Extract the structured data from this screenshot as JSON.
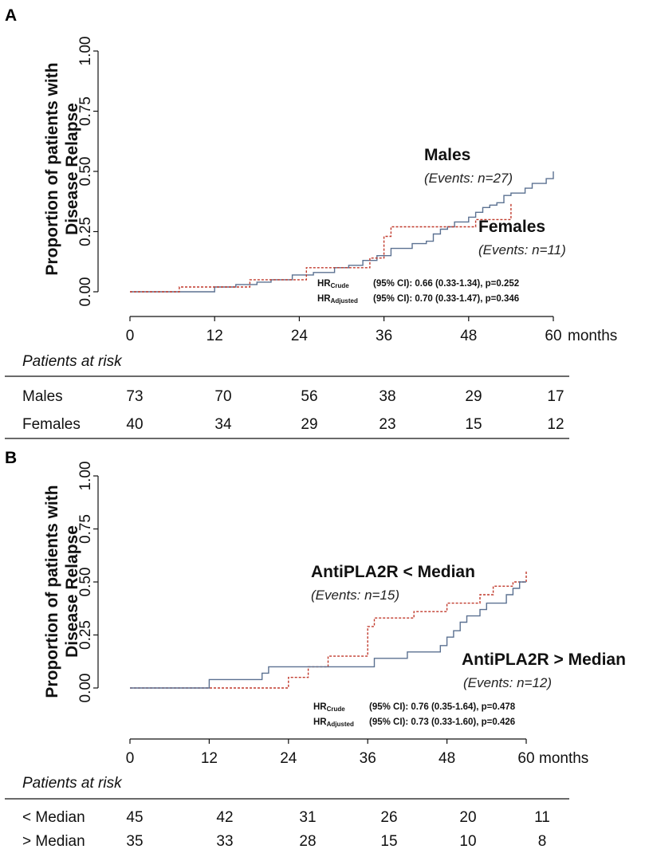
{
  "chart_data": [
    {
      "type": "line",
      "panel_label": "A",
      "ylabel_line1": "Proportion of patients with",
      "ylabel_line2": "Disease Relapse",
      "xlabel_suffix": "months",
      "xlim": [
        0,
        60
      ],
      "ylim": [
        0,
        1
      ],
      "x_ticks": [
        "0",
        "12",
        "24",
        "36",
        "48",
        "60"
      ],
      "y_ticks": [
        "0.00",
        "0.25",
        "0.50",
        "0.75",
        "1.00"
      ],
      "series": [
        {
          "name": "Males",
          "events_label": "(Events: n=27)",
          "color": "#5b7191",
          "dash": "solid",
          "x": [
            0,
            9,
            12,
            15,
            18,
            20,
            23,
            26,
            29,
            31,
            33,
            35,
            37,
            40,
            42,
            43,
            44,
            45,
            46,
            48,
            49,
            50,
            51,
            52,
            53,
            54,
            56,
            57,
            59,
            60
          ],
          "y": [
            0,
            0,
            0.02,
            0.03,
            0.04,
            0.05,
            0.07,
            0.08,
            0.1,
            0.11,
            0.13,
            0.15,
            0.18,
            0.2,
            0.21,
            0.24,
            0.26,
            0.27,
            0.29,
            0.31,
            0.33,
            0.35,
            0.36,
            0.37,
            0.4,
            0.41,
            0.43,
            0.45,
            0.47,
            0.5
          ]
        },
        {
          "name": "Females",
          "events_label": "(Events: n=11)",
          "color": "#c0392b",
          "dash": "dashed",
          "x": [
            0,
            7,
            12,
            16,
            17,
            22,
            25,
            31,
            34,
            36,
            37,
            39,
            40,
            47,
            49,
            50,
            54
          ],
          "y": [
            0,
            0.02,
            0.02,
            0.02,
            0.05,
            0.05,
            0.1,
            0.1,
            0.14,
            0.23,
            0.27,
            0.27,
            0.27,
            0.27,
            0.3,
            0.3,
            0.37
          ]
        }
      ],
      "hr_crude_label": "HR",
      "hr_crude_sub": "Crude",
      "hr_crude_text": "(95% CI):  0.66 (0.33-1.34), p=0.252",
      "hr_adjusted_label": "HR",
      "hr_adjusted_sub": "Adjusted",
      "hr_adjusted_text": "(95% CI):  0.70 (0.33-1.47), p=0.346",
      "risk_title": "Patients at risk",
      "risk_rows": [
        {
          "label": "Males",
          "values": [
            "73",
            "70",
            "56",
            "38",
            "29",
            "17"
          ]
        },
        {
          "label": "Females",
          "values": [
            "40",
            "34",
            "29",
            "23",
            "15",
            "12"
          ]
        }
      ]
    },
    {
      "type": "line",
      "panel_label": "B",
      "ylabel_line1": "Proportion of patients with",
      "ylabel_line2": "Disease Relapse",
      "xlabel_suffix": "months",
      "xlim": [
        0,
        60
      ],
      "ylim": [
        0,
        1
      ],
      "x_ticks": [
        "0",
        "12",
        "24",
        "36",
        "48",
        "60"
      ],
      "y_ticks": [
        "0.00",
        "0.25",
        "0.50",
        "0.75",
        "1.00"
      ],
      "series": [
        {
          "name": "AntiPLA2R <  Median",
          "events_label": "(Events: n=15)",
          "color": "#c0392b",
          "dash": "dashed",
          "x": [
            0,
            12,
            24,
            27,
            30,
            35,
            36,
            37,
            43,
            48,
            53,
            55,
            58,
            60
          ],
          "y": [
            0,
            0,
            0.05,
            0.1,
            0.15,
            0.15,
            0.29,
            0.33,
            0.36,
            0.4,
            0.44,
            0.48,
            0.5,
            0.55
          ]
        },
        {
          "name": "AntiPLA2R > Median",
          "events_label": "(Events: n=12)",
          "color": "#5b7191",
          "dash": "solid",
          "x": [
            0,
            12,
            18,
            20,
            21,
            24,
            27,
            33,
            36,
            37,
            42,
            45,
            47,
            48,
            49,
            50,
            51,
            53,
            54,
            57,
            58,
            59,
            60
          ],
          "y": [
            0,
            0.04,
            0.04,
            0.07,
            0.1,
            0.1,
            0.1,
            0.1,
            0.1,
            0.14,
            0.17,
            0.17,
            0.2,
            0.24,
            0.27,
            0.31,
            0.34,
            0.37,
            0.4,
            0.44,
            0.47,
            0.5,
            0.5
          ]
        }
      ],
      "hr_crude_label": "HR",
      "hr_crude_sub": "Crude",
      "hr_crude_text": "(95% CI): 0.76 (0.35-1.64), p=0.478",
      "hr_adjusted_label": "HR",
      "hr_adjusted_sub": "Adjusted",
      "hr_adjusted_text": "(95% CI): 0.73 (0.33-1.60), p=0.426",
      "risk_title": "Patients at risk",
      "risk_rows": [
        {
          "label": "< Median",
          "values": [
            "45",
            "42",
            "31",
            "26",
            "20",
            "11"
          ]
        },
        {
          "label": "> Median",
          "values": [
            "35",
            "33",
            "28",
            "15",
            "10",
            "8"
          ]
        }
      ]
    }
  ]
}
